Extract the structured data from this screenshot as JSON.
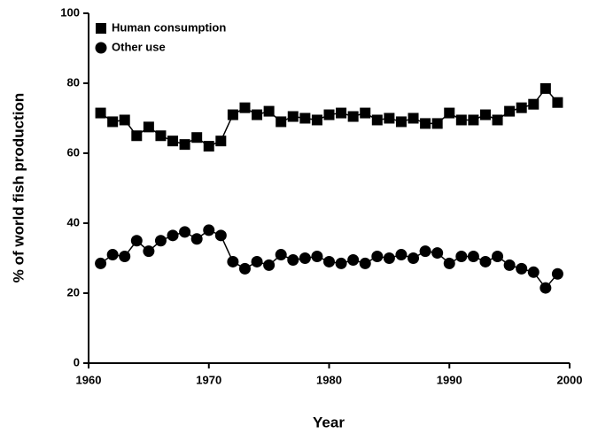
{
  "chart_data": {
    "type": "line",
    "x_label": "Year",
    "y_label": "% of world fish production",
    "x": [
      1961,
      1962,
      1963,
      1964,
      1965,
      1966,
      1967,
      1968,
      1969,
      1970,
      1971,
      1972,
      1973,
      1974,
      1975,
      1976,
      1977,
      1978,
      1979,
      1980,
      1981,
      1982,
      1983,
      1984,
      1985,
      1986,
      1987,
      1988,
      1989,
      1990,
      1991,
      1992,
      1993,
      1994,
      1995,
      1996,
      1997,
      1998,
      1999
    ],
    "series": [
      {
        "name": "Human consumption",
        "color": "#000000",
        "marker": "square",
        "values": [
          71.5,
          69,
          69.5,
          65,
          67.5,
          65,
          63.5,
          62.5,
          64.5,
          62,
          63.5,
          71,
          73,
          71,
          72,
          69,
          70.5,
          70,
          69.5,
          71,
          71.5,
          70.5,
          71.5,
          69.5,
          70,
          69,
          70,
          68.5,
          68.5,
          71.5,
          69.5,
          69.5,
          71,
          69.5,
          72,
          73,
          74,
          78.5,
          74.5
        ]
      },
      {
        "name": "Other use",
        "color": "#000000",
        "marker": "circle",
        "values": [
          28.5,
          31,
          30.5,
          35,
          32,
          35,
          36.5,
          37.5,
          35.5,
          38,
          36.5,
          29,
          27,
          29,
          28,
          31,
          29.5,
          30,
          30.5,
          29,
          28.5,
          29.5,
          28.5,
          30.5,
          30,
          31,
          30,
          32,
          31.5,
          28.5,
          30.5,
          30.5,
          29,
          30.5,
          28,
          27,
          26,
          21.5,
          25.5
        ]
      }
    ],
    "xlim": [
      1960,
      2000
    ],
    "xticks": [
      1960,
      1970,
      1980,
      1990,
      2000
    ],
    "ylim": [
      0,
      100
    ],
    "yticks": [
      0,
      20,
      40,
      60,
      80,
      100
    ],
    "grid": false,
    "legend": "top-left"
  }
}
